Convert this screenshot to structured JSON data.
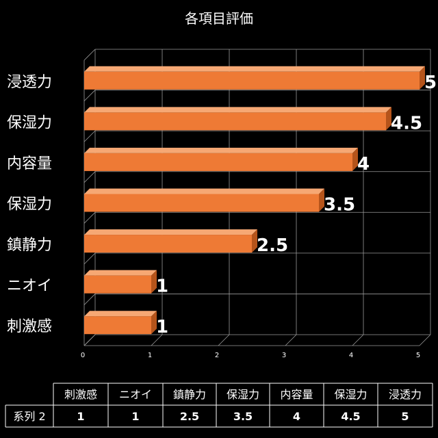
{
  "chart_data": {
    "type": "bar",
    "orientation": "horizontal",
    "title": "各項目評価",
    "categories": [
      "刺激感",
      "ニオイ",
      "鎮静力",
      "保湿力",
      "内容量",
      "保湿力",
      "浸透力"
    ],
    "series": [
      {
        "name": "系列 2",
        "values": [
          1,
          1,
          2.5,
          3.5,
          4,
          4.5,
          5
        ],
        "value_labels": [
          "1",
          "1",
          "2.5",
          "3.5",
          "4",
          "4.5",
          "5"
        ]
      }
    ],
    "xlim": [
      0,
      5
    ],
    "x_ticks": [
      "0",
      "1",
      "2",
      "3",
      "4",
      "5"
    ],
    "grid": true,
    "data_table": true,
    "colors": {
      "bar_front": "#ee7a35",
      "bar_top": "#f6a874",
      "bar_side": "#b5541b",
      "background": "#000000",
      "text": "#ffffff"
    }
  }
}
